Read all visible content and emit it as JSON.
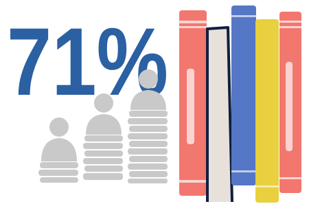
{
  "stat": {
    "text": "71%"
  }
}
